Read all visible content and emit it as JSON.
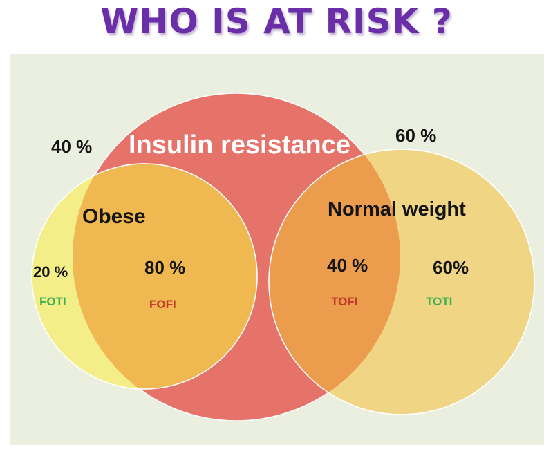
{
  "title": "WHO IS AT RISK ?",
  "sets": {
    "insulin_resistance": "Insulin resistance",
    "obese": "Obese",
    "normal_weight": "Normal weight"
  },
  "values": {
    "obese_share": "40 %",
    "normal_share": "60 %",
    "foti_pct": "20 %",
    "fofi_pct": "80 %",
    "tofi_pct": "40 %",
    "toti_pct": "60%"
  },
  "codes": {
    "foti": "FOTI",
    "fofi": "FOFI",
    "tofi": "TOFI",
    "toti": "TOTI"
  },
  "colors": {
    "title": "#6a2fa8",
    "insulin_circle": "#e6736a",
    "obese_circle": "#f4ee7c",
    "normal_circle": "#f0d070",
    "green_code": "#3fb050",
    "red_code": "#c0392b"
  }
}
